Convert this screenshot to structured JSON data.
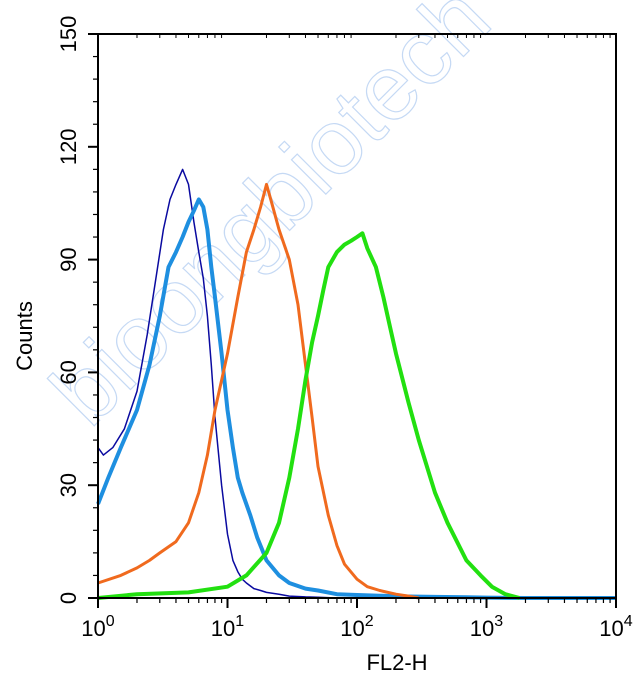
{
  "watermark": "bioongbiotech",
  "chart_data": {
    "type": "line",
    "xlabel": "FL2-H",
    "ylabel": "Counts",
    "x_scale": "log",
    "xlim": [
      1,
      10000
    ],
    "ylim": [
      0,
      150
    ],
    "x_ticks": [
      {
        "value": 1,
        "base": "10",
        "exp": "0"
      },
      {
        "value": 10,
        "base": "10",
        "exp": "1"
      },
      {
        "value": 100,
        "base": "10",
        "exp": "2"
      },
      {
        "value": 1000,
        "base": "10",
        "exp": "3"
      },
      {
        "value": 10000,
        "base": "10",
        "exp": "4"
      }
    ],
    "y_ticks": [
      0,
      30,
      60,
      90,
      120,
      150
    ],
    "grid": false,
    "series": [
      {
        "color": "#0a0aa0",
        "width": 1.5,
        "x": [
          1.0,
          1.1,
          1.3,
          1.6,
          2.0,
          2.4,
          2.8,
          3.2,
          3.6,
          4.0,
          4.5,
          5.0,
          5.5,
          6.0,
          6.5,
          7.0,
          7.5,
          8.0,
          9.0,
          10.0,
          11.0,
          12.0,
          13.0,
          14.0,
          16.0,
          18.0,
          20.0,
          25.0,
          30.0,
          40.0,
          50.0,
          70.0
        ],
        "y": [
          40,
          38,
          40,
          45,
          55,
          70,
          85,
          98,
          106,
          110,
          114,
          110,
          100,
          92,
          85,
          75,
          62,
          48,
          30,
          17,
          10,
          7,
          5,
          4,
          2.5,
          2,
          1.5,
          1,
          0.5,
          0.3,
          0.2,
          0
        ]
      },
      {
        "color": "#1e8fe0",
        "width": 4,
        "x": [
          1.0,
          1.2,
          1.5,
          2.0,
          2.5,
          3.0,
          3.5,
          4.0,
          4.5,
          5.0,
          5.5,
          6.0,
          6.5,
          7.0,
          7.5,
          8.0,
          9.0,
          10.0,
          11.0,
          12.0,
          13.0,
          15.0,
          17.0,
          20.0,
          25.0,
          30.0,
          40.0,
          50.0,
          70.0,
          100.0,
          150.0,
          250.0,
          400.0,
          700.0,
          1000.0,
          2000.0,
          5000.0,
          10000.0
        ],
        "y": [
          25,
          32,
          40,
          50,
          62,
          75,
          88,
          92,
          96,
          100,
          103,
          106,
          104,
          98,
          88,
          80,
          65,
          50,
          40,
          32,
          28,
          22,
          16,
          10,
          6,
          4,
          2.5,
          2,
          1,
          0.8,
          0.6,
          0.4,
          0.3,
          0.2,
          0.1,
          0,
          0,
          0
        ]
      },
      {
        "color": "#f06a1e",
        "width": 3,
        "x": [
          1.0,
          1.5,
          2.0,
          2.5,
          3.0,
          4.0,
          5.0,
          6.0,
          7.0,
          8.0,
          10.0,
          12.0,
          14.0,
          16.0,
          18.0,
          20.0,
          22.0,
          25.0,
          30.0,
          35.0,
          40.0,
          45.0,
          50.0,
          60.0,
          70.0,
          80.0,
          100.0,
          120.0,
          150.0,
          200.0,
          250.0,
          300.0
        ],
        "y": [
          4,
          6,
          8,
          10,
          12,
          15,
          20,
          28,
          38,
          50,
          65,
          80,
          92,
          98,
          104,
          110,
          105,
          98,
          90,
          78,
          62,
          48,
          35,
          22,
          14,
          9,
          5,
          3,
          2,
          1,
          0.5,
          0
        ]
      },
      {
        "color": "#22e010",
        "width": 4,
        "x": [
          1.0,
          2.0,
          5.0,
          10.0,
          14.0,
          20.0,
          25.0,
          30.0,
          35.0,
          40.0,
          45.0,
          50.0,
          55.0,
          60.0,
          70.0,
          80.0,
          90.0,
          100.0,
          110.0,
          120.0,
          140.0,
          160.0,
          180.0,
          200.0,
          250.0,
          300.0,
          400.0,
          500.0,
          700.0,
          900.0,
          1100.0,
          1400.0,
          1800.0
        ],
        "y": [
          0,
          1,
          1.5,
          3,
          6,
          12,
          20,
          32,
          45,
          58,
          68,
          75,
          82,
          88,
          92,
          94,
          95,
          96,
          97,
          93,
          88,
          80,
          72,
          65,
          52,
          42,
          28,
          20,
          10,
          6,
          3,
          1,
          0
        ]
      }
    ]
  }
}
